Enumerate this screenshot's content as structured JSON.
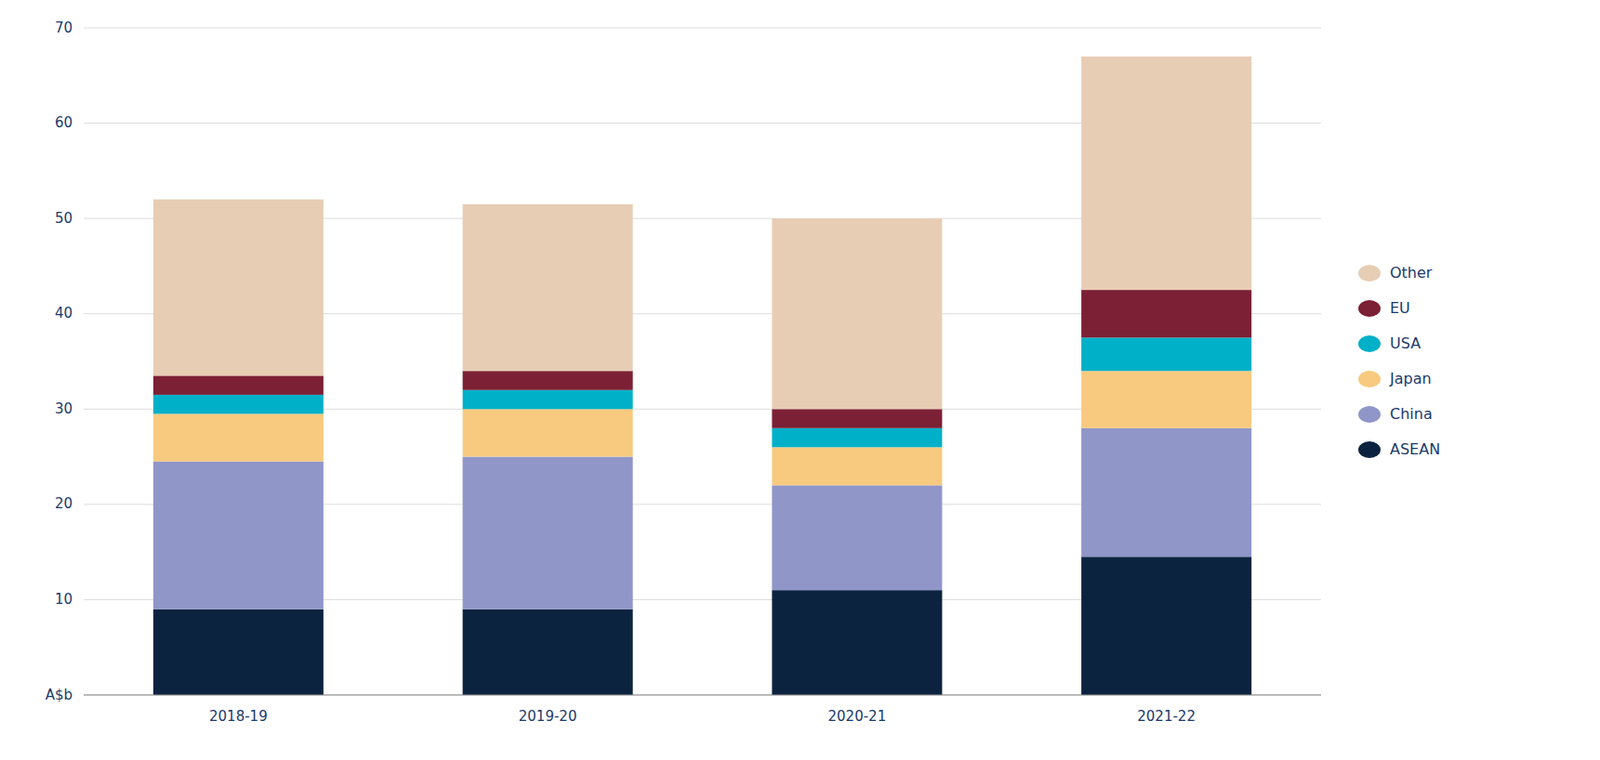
{
  "chart_data": {
    "type": "bar",
    "stacked": true,
    "grid": true,
    "legend": "right",
    "categories": [
      "2018-19",
      "2019-20",
      "2020-21",
      "2021-22"
    ],
    "series": [
      {
        "name": "ASEAN",
        "color": "#0c2340",
        "values": [
          9.0,
          9.0,
          11.0,
          14.5
        ]
      },
      {
        "name": "China",
        "color": "#9096c8",
        "values": [
          15.5,
          16.0,
          11.0,
          13.5
        ]
      },
      {
        "name": "Japan",
        "color": "#f7ca7f",
        "values": [
          5.0,
          5.0,
          4.0,
          6.0
        ]
      },
      {
        "name": "USA",
        "color": "#00b0c8",
        "values": [
          2.0,
          2.0,
          2.0,
          3.5
        ]
      },
      {
        "name": "EU",
        "color": "#7c2035",
        "values": [
          2.0,
          2.0,
          2.0,
          5.0
        ]
      },
      {
        "name": "Other",
        "color": "#e8cdb5",
        "values": [
          18.5,
          17.5,
          20.0,
          24.5
        ]
      }
    ],
    "ylim": [
      0,
      70
    ],
    "yticks": [
      {
        "value": 0,
        "label": "A$b"
      },
      10,
      20,
      30,
      40,
      50,
      60,
      70
    ]
  }
}
